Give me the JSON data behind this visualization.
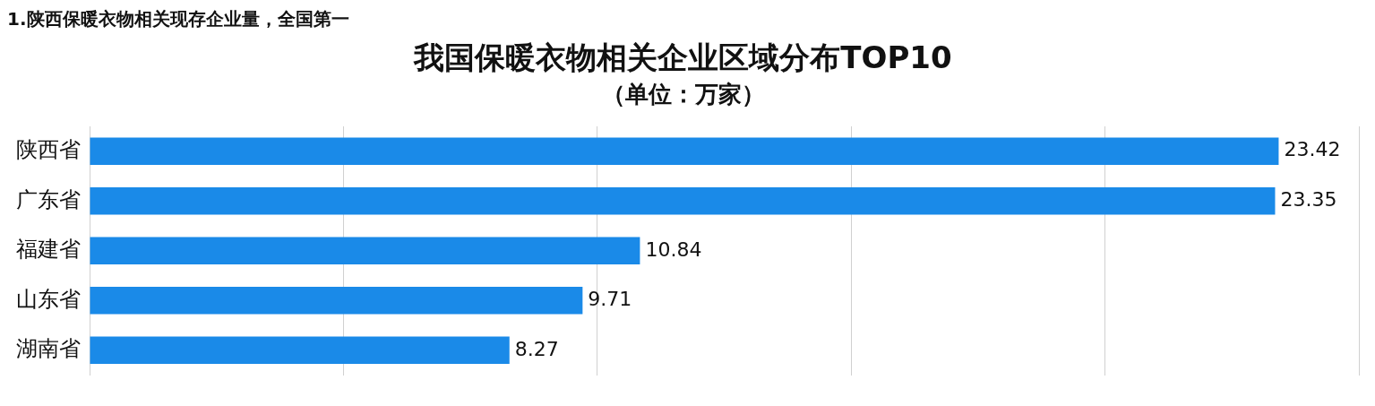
{
  "chart_data": {
    "type": "bar",
    "orientation": "horizontal",
    "title": "我国保暖衣物相关企业区域分布TOP10",
    "subtitle": "（单位：万家）",
    "annotations": [
      "1.陕西保暖衣物相关现存企业量，全国第一"
    ],
    "categories": [
      "陕西省",
      "广东省",
      "福建省",
      "山东省",
      "湖南省"
    ],
    "values": [
      23.42,
      23.35,
      10.84,
      9.71,
      8.27
    ],
    "color": "#1a8ae8",
    "xlim": [
      0,
      25
    ],
    "xticks": [
      {
        "value": 0,
        "label": null
      },
      {
        "value": 5,
        "label": null
      },
      {
        "value": 10,
        "label": null
      },
      {
        "value": 15,
        "label": null
      },
      {
        "value": 20,
        "label": null
      },
      {
        "value": 25,
        "label": null
      }
    ],
    "grid": "x",
    "tick_labels": "y",
    "data_labels": true,
    "legend": false
  }
}
